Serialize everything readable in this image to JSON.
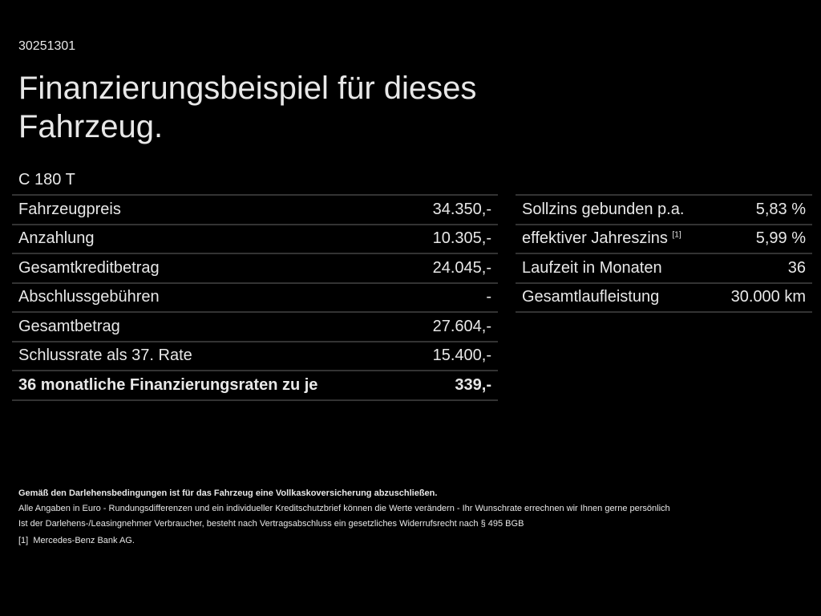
{
  "code": "30251301",
  "title": "Finanzierungsbeispiel für dieses Fahrzeug.",
  "model": "C 180 T",
  "left_table": [
    {
      "label": "Fahrzeugpreis",
      "value": "34.350,-"
    },
    {
      "label": "Anzahlung",
      "value": "10.305,-"
    },
    {
      "label": "Gesamtkreditbetrag",
      "value": "24.045,-"
    },
    {
      "label": "Abschlussgebühren",
      "value": "-"
    },
    {
      "label": "Gesamtbetrag",
      "value": "27.604,-"
    },
    {
      "label": "Schlussrate als 37. Rate",
      "value": "15.400,-"
    },
    {
      "label": "36 monatliche Finanzierungsraten zu je",
      "value": "339,-"
    }
  ],
  "right_table": [
    {
      "label": "Sollzins gebunden p.a.",
      "value": "5,83 %"
    },
    {
      "label": "effektiver Jahreszins",
      "sup": "[1]",
      "value": "5,99 %"
    },
    {
      "label": "Laufzeit in Monaten",
      "value": "36"
    },
    {
      "label": "Gesamtlaufleistung",
      "value": "30.000 km"
    }
  ],
  "notes": {
    "bold": "Gemäß den Darlehensbedingungen ist für das Fahrzeug eine Vollkaskoversicherung abzuschließen.",
    "line1": "Alle Angaben in Euro - Rundungsdifferenzen und ein individueller Kreditschutzbrief können die Werte verändern - Ihr Wunschrate errechnen wir Ihnen gerne persönlich",
    "line2": "Ist der Darlehens-/Leasingnehmer Verbraucher, besteht nach Vertragsabschluss ein gesetzliches Widerrufsrecht nach § 495 BGB",
    "footnote_mark": "[1]",
    "footnote": "Mercedes-Benz Bank AG."
  }
}
